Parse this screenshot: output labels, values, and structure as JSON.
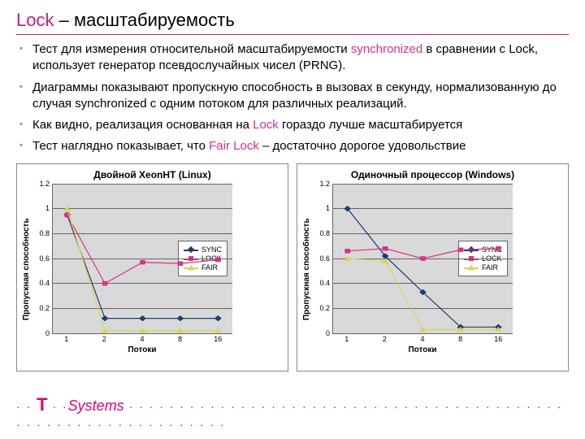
{
  "title_prefix": "Lock",
  "title_dash": " – ",
  "title_rest": "масштабируемость",
  "title_accent_color": "#c02080",
  "bullets": [
    {
      "pre": "Тест для измерения относительной масштабируемости ",
      "hl": "synchronized",
      "post": " в сравнении с Lock, использует генератор псевдослучайных чисел (PRNG)."
    },
    {
      "pre": "Диаграммы показывают пропускную способность в вызовах в секунду, нормализованную до случая synchronized с одним потоком для различных реализаций.",
      "hl": "",
      "post": ""
    },
    {
      "pre": "Как видно, реализация основанная на ",
      "hl": "Lock",
      "post": " гораздо лучше масштабируется"
    },
    {
      "pre": "Тест наглядно показывает, что ",
      "hl": "Fair Lock",
      "post": " – достаточно дорогое удовольствие"
    }
  ],
  "pink_color": "#d63384",
  "charts": [
    {
      "title": "Двойной XeonНТ (Linux)",
      "ylabel": "Пропускная способность",
      "xlabel": "Потоки",
      "xticks": [
        "1",
        "2",
        "4",
        "8",
        "16"
      ],
      "ylim": [
        0,
        1.2
      ],
      "ytick_step": 0.2,
      "plot_bg": "#d9d9d9",
      "grid_color": "#666666",
      "series": [
        {
          "name": "SYNC",
          "color": "#1f3b73",
          "marker": "diamond",
          "values": [
            0.95,
            0.12,
            0.12,
            0.12,
            0.12
          ]
        },
        {
          "name": "LOCK",
          "color": "#d63384",
          "marker": "square",
          "values": [
            0.95,
            0.4,
            0.57,
            0.56,
            0.59
          ]
        },
        {
          "name": "FAIR",
          "color": "#d8d45a",
          "marker": "triangle",
          "values": [
            1.0,
            0.02,
            0.02,
            0.02,
            0.02
          ]
        }
      ]
    },
    {
      "title": "Одиночный процессор (Windows)",
      "ylabel": "Пропускная способность",
      "xlabel": "Потоки",
      "xticks": [
        "1",
        "2",
        "4",
        "8",
        "16"
      ],
      "ylim": [
        0,
        1.2
      ],
      "ytick_step": 0.2,
      "plot_bg": "#d9d9d9",
      "grid_color": "#666666",
      "series": [
        {
          "name": "SYNC",
          "color": "#1f3b73",
          "marker": "diamond",
          "values": [
            1.0,
            0.62,
            0.33,
            0.05,
            0.05
          ]
        },
        {
          "name": "LOCK",
          "color": "#d63384",
          "marker": "square",
          "values": [
            0.66,
            0.68,
            0.6,
            0.67,
            0.68
          ]
        },
        {
          "name": "FAIR",
          "color": "#d8d45a",
          "marker": "triangle",
          "values": [
            0.6,
            0.58,
            0.03,
            0.03,
            0.03
          ]
        }
      ]
    }
  ],
  "legend_labels": [
    "SYNC",
    "LOCK",
    "FAIR"
  ],
  "footer_brand": "T",
  "footer_sep": " · · ",
  "footer_text": "Systems",
  "footer_color": "#e2007a"
}
